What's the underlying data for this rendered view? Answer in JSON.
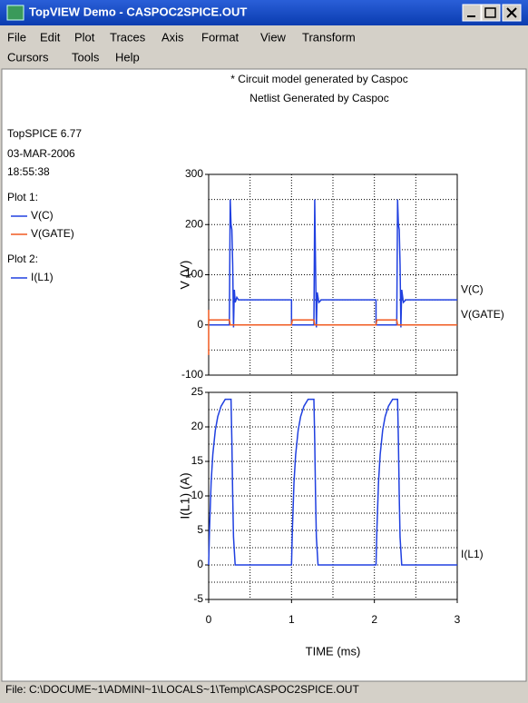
{
  "window": {
    "title": "TopVIEW Demo - CASPOC2SPICE.OUT"
  },
  "menu": {
    "row1": [
      "File",
      "Edit",
      "Plot",
      "Traces",
      "Axis",
      "Format",
      "View",
      "Transform"
    ],
    "row2": [
      "Cursors",
      "Tools",
      "Help"
    ]
  },
  "notes": [
    "* Circuit model generated by Caspoc",
    "Netlist Generated by Caspoc"
  ],
  "sidebar": {
    "version": "TopSPICE 6.77",
    "date": "03-MAR-2006",
    "time": "18:55:38",
    "plots": [
      "Plot 1:",
      "Plot 2:"
    ]
  },
  "chart_data": [
    {
      "type": "line",
      "ylabel": "V (V)",
      "xlim": [
        0,
        3
      ],
      "xgrid": [
        0.5,
        1,
        1.5,
        2,
        2.5
      ],
      "ylim": [
        -100,
        300
      ],
      "yticks": [
        -100,
        0,
        100,
        200,
        300
      ],
      "ygrid": [
        -50,
        0,
        50,
        100,
        150,
        200,
        250
      ],
      "series": [
        {
          "name": "V(C)",
          "color": "#2040e0",
          "x": [
            0,
            0.25,
            0.26,
            0.27,
            0.28,
            0.29,
            0.3,
            0.31,
            0.32,
            0.34,
            0.36,
            1.0,
            1.0,
            1.27,
            1.28,
            1.29,
            1.3,
            1.31,
            1.33,
            1.36,
            2.02,
            2.02,
            2.27,
            2.28,
            2.29,
            2.3,
            2.31,
            2.32,
            2.33,
            2.35,
            2.38,
            3
          ],
          "values": [
            0,
            0,
            250,
            200,
            190,
            120,
            -5,
            70,
            45,
            55,
            50,
            50,
            0,
            0,
            250,
            120,
            -5,
            65,
            45,
            50,
            50,
            0,
            0,
            250,
            200,
            190,
            120,
            -5,
            70,
            45,
            50,
            50
          ]
        },
        {
          "name": "V(GATE)",
          "color": "#f05a20",
          "x": [
            0,
            0,
            0,
            0.25,
            0.26,
            1.0,
            1.01,
            1.27,
            1.28,
            2.02,
            2.03,
            2.27,
            2.28,
            3
          ],
          "values": [
            30,
            -60,
            10,
            10,
            0,
            0,
            10,
            10,
            0,
            0,
            10,
            10,
            0,
            0
          ]
        }
      ]
    },
    {
      "type": "line",
      "ylabel": "I(L1)  (A)",
      "xlabel": "TIME  (ms)",
      "xlim": [
        0,
        3
      ],
      "xticks": [
        0,
        1,
        2,
        3
      ],
      "xgrid": [
        0.5,
        1,
        1.5,
        2,
        2.5
      ],
      "ylim": [
        -5,
        25
      ],
      "yticks": [
        -5,
        0,
        5,
        10,
        15,
        20,
        25
      ],
      "ygrid": [
        -2.5,
        0,
        2.5,
        5,
        7.5,
        10,
        12.5,
        15,
        17.5,
        20,
        22.5
      ],
      "series": [
        {
          "name": "I(L1)",
          "color": "#2040e0",
          "x": [
            0,
            0.01,
            0.03,
            0.05,
            0.08,
            0.11,
            0.15,
            0.2,
            0.27,
            0.28,
            0.29,
            0.3,
            0.32,
            1.0,
            1.01,
            1.03,
            1.05,
            1.08,
            1.11,
            1.15,
            1.2,
            1.27,
            1.28,
            1.29,
            1.3,
            1.32,
            2.02,
            2.03,
            2.05,
            2.07,
            2.1,
            2.13,
            2.17,
            2.22,
            2.28,
            2.29,
            2.3,
            2.31,
            2.33,
            3
          ],
          "values": [
            0,
            5,
            12,
            16,
            19.5,
            21.5,
            23,
            24,
            24,
            18,
            10,
            4,
            0,
            0,
            5,
            12,
            16,
            19.5,
            21.5,
            23,
            24,
            24,
            18,
            10,
            4,
            0,
            0,
            5,
            12,
            16,
            19.5,
            21.5,
            23,
            24,
            24,
            18,
            10,
            4,
            0,
            0
          ]
        }
      ]
    }
  ],
  "footer": "File: C:\\DOCUME~1\\ADMINI~1\\LOCALS~1\\Temp\\CASPOC2SPICE.OUT"
}
